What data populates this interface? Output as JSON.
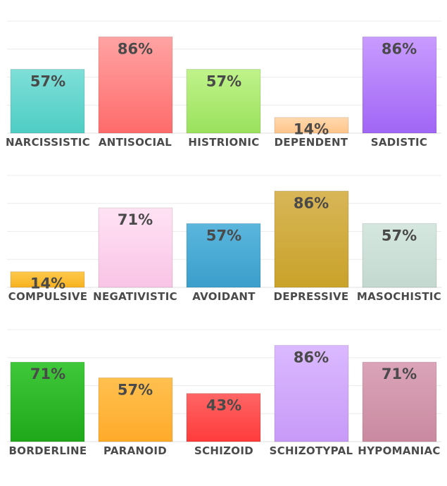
{
  "chart_data": [
    {
      "type": "bar",
      "categories": [
        "NARCISSISTIC",
        "ANTISOCIAL",
        "HISTRIONIC",
        "DEPENDENT",
        "SADISTIC"
      ],
      "values": [
        57,
        86,
        57,
        14,
        86
      ],
      "labels": [
        "57%",
        "86%",
        "57%",
        "14%",
        "86%"
      ],
      "colors": [
        [
          "#7edfd8",
          "#4ecdc4"
        ],
        [
          "#ffa3a3",
          "#ff6b6b"
        ],
        [
          "#bff38a",
          "#9be15d"
        ],
        [
          "#ffd9ad",
          "#ffc48a"
        ],
        [
          "#c99cff",
          "#a066f5"
        ]
      ],
      "ylim": [
        0,
        100
      ],
      "grid": true
    },
    {
      "type": "bar",
      "categories": [
        "COMPULSIVE",
        "NEGATIVISTIC",
        "AVOIDANT",
        "DEPRESSIVE",
        "MASOCHISTIC"
      ],
      "values": [
        14,
        71,
        57,
        86,
        57
      ],
      "labels": [
        "14%",
        "71%",
        "57%",
        "86%",
        "57%"
      ],
      "colors": [
        [
          "#ffc94d",
          "#f7b21f"
        ],
        [
          "#ffe2f4",
          "#f9c4e6"
        ],
        [
          "#5bb6dd",
          "#3a9fcb"
        ],
        [
          "#d8b657",
          "#c9a229"
        ],
        [
          "#d5e7df",
          "#c3d9cf"
        ]
      ],
      "ylim": [
        0,
        100
      ],
      "grid": true
    },
    {
      "type": "bar",
      "categories": [
        "BORDERLINE",
        "PARANOID",
        "SCHIZOID",
        "SCHIZOTYPAL",
        "HYPOMANIAC"
      ],
      "values": [
        71,
        57,
        43,
        86,
        71
      ],
      "labels": [
        "71%",
        "57%",
        "43%",
        "86%",
        "71%"
      ],
      "colors": [
        [
          "#3fc93a",
          "#1ea81a"
        ],
        [
          "#ffc04f",
          "#ffab2a"
        ],
        [
          "#ff6565",
          "#ff3b3b"
        ],
        [
          "#dbb9ff",
          "#c79af7"
        ],
        [
          "#dba4b8",
          "#c98aa0"
        ]
      ],
      "ylim": [
        0,
        100
      ],
      "grid": true
    }
  ]
}
